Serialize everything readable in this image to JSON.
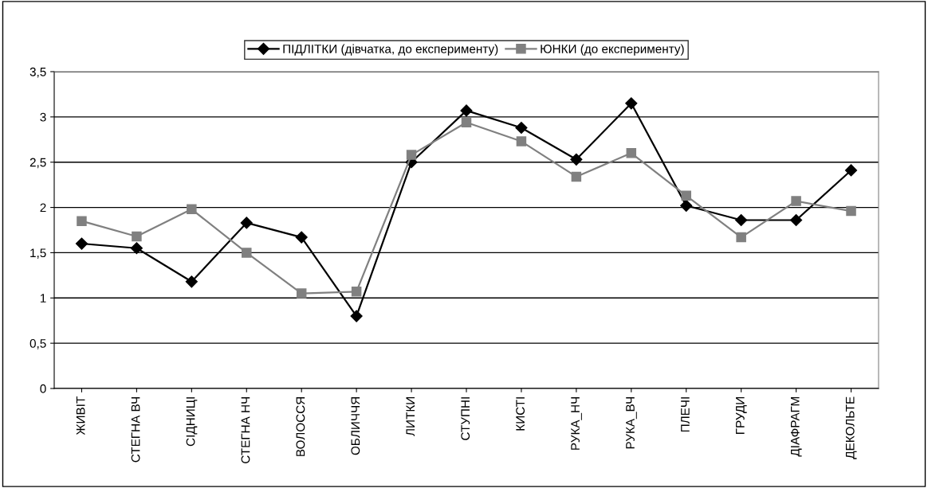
{
  "chart_data": {
    "type": "line",
    "categories": [
      "ЖИВІТ",
      "СТЕГНА ВЧ",
      "СІДНИЦІ",
      "СТЕГНА НЧ",
      "ВОЛОССЯ",
      "ОБЛИЧЧЯ",
      "ЛИТКИ",
      "СТУПНІ",
      "КИСТІ",
      "РУКА_НЧ",
      "РУКА_ВЧ",
      "ПЛЕЧІ",
      "ГРУДИ",
      "ДІАФРАГМ",
      "ДЕКОЛЬТЕ"
    ],
    "series": [
      {
        "name": "ПІДЛІТКИ (дівчатка, до експерименту)",
        "color": "#000000",
        "marker": "diamond",
        "values": [
          1.6,
          1.55,
          1.18,
          1.83,
          1.67,
          0.8,
          2.5,
          3.07,
          2.88,
          2.53,
          3.15,
          2.02,
          1.86,
          1.86,
          2.41
        ]
      },
      {
        "name": "ЮНКИ (до експерименту)",
        "color": "#808080",
        "marker": "square",
        "values": [
          1.85,
          1.68,
          1.98,
          1.5,
          1.05,
          1.07,
          2.58,
          2.94,
          2.73,
          2.34,
          2.6,
          2.13,
          1.67,
          2.07,
          1.96
        ]
      }
    ],
    "ylim": [
      0,
      3.5
    ],
    "yticks": [
      0,
      {
        "value": 0.5,
        "label": "0,5"
      },
      1,
      {
        "value": 1.5,
        "label": "1,5"
      },
      2,
      {
        "value": 2.5,
        "label": "2,5"
      },
      3,
      {
        "value": 3.5,
        "label": "3,5"
      }
    ],
    "grid": "y",
    "legend": "top",
    "line_style": "solid"
  }
}
